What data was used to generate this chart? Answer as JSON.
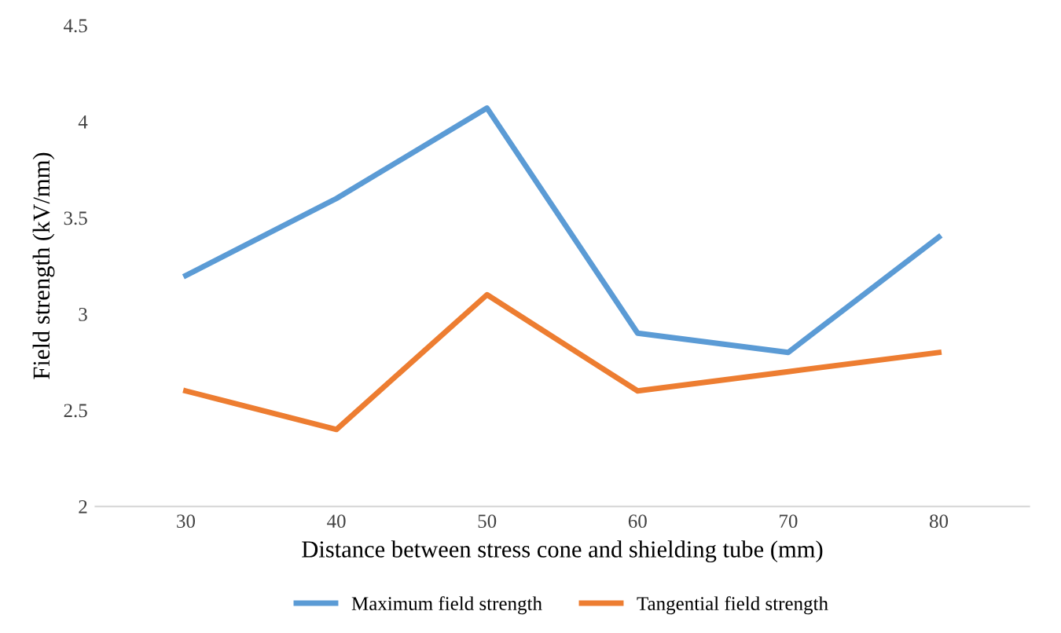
{
  "chart_data": {
    "type": "line",
    "xlabel": "Distance between stress cone and shielding tube (mm)",
    "ylabel": "Field strength (kV/mm)",
    "categories": [
      "30",
      "40",
      "50",
      "60",
      "70",
      "80"
    ],
    "series": [
      {
        "name": "Maximum field strength",
        "color": "#5b9bd5",
        "values": [
          3.2,
          3.6,
          4.07,
          2.9,
          2.8,
          3.4
        ]
      },
      {
        "name": "Tangential field strength",
        "color": "#ed7d31",
        "values": [
          2.6,
          2.4,
          3.1,
          2.6,
          2.7,
          2.8
        ]
      }
    ],
    "ylim": [
      2,
      4.5
    ],
    "yticks": [
      2,
      2.5,
      3,
      3.5,
      4,
      4.5
    ],
    "grid": false,
    "legend": "bottom",
    "marker": "none",
    "line_style": "solid"
  }
}
